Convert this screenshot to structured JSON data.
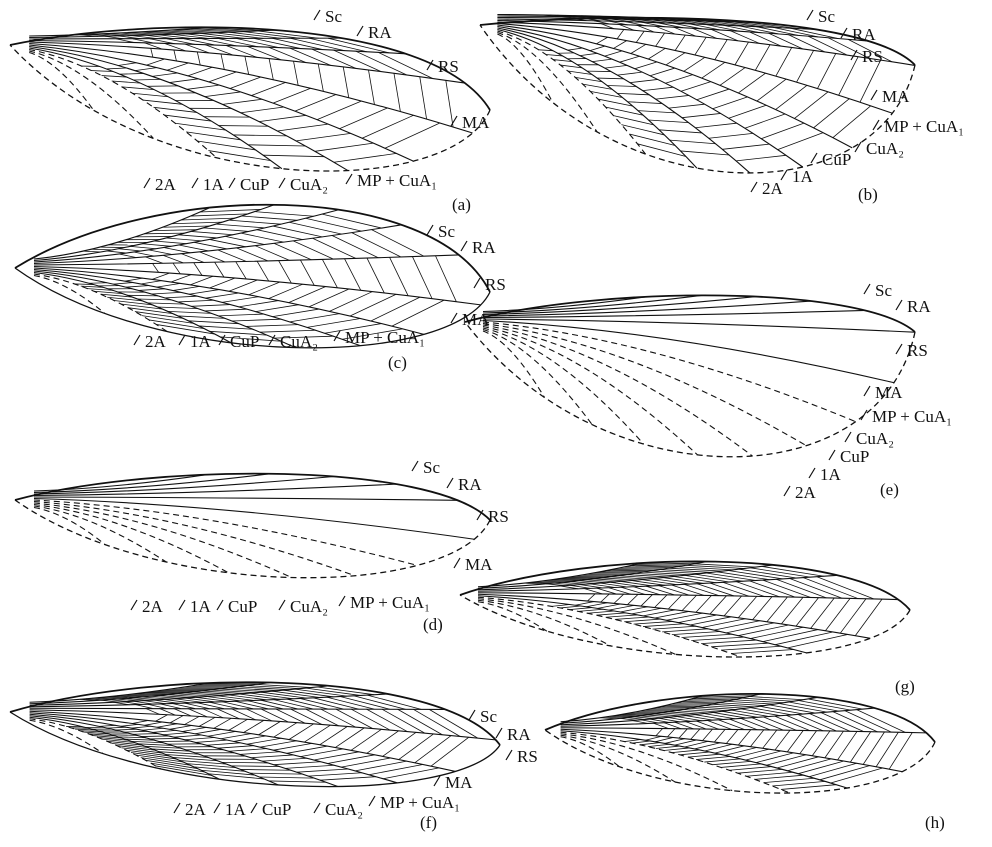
{
  "figure": {
    "panels": [
      {
        "label": "(a)",
        "veins": [
          "Sc",
          "RA",
          "RS",
          "MA",
          "MP + CuA₁",
          "CuA₂",
          "CuP",
          "1A",
          "2A"
        ]
      },
      {
        "label": "(b)",
        "veins": [
          "Sc",
          "RA",
          "RS",
          "MA",
          "MP + CuA₁",
          "CuA₂",
          "CuP",
          "1A",
          "2A"
        ]
      },
      {
        "label": "(c)",
        "veins": [
          "Sc",
          "RA",
          "RS",
          "MA",
          "MP + CuA₁",
          "CuA₂",
          "CuP",
          "1A",
          "2A"
        ]
      },
      {
        "label": "(d)",
        "veins": [
          "Sc",
          "RA",
          "RS",
          "MA",
          "MP + CuA₁",
          "CuA₂",
          "CuP",
          "1A",
          "2A"
        ]
      },
      {
        "label": "(e)",
        "veins": [
          "Sc",
          "RA",
          "RS",
          "MA",
          "MP + CuA₁",
          "CuA₂",
          "CuP",
          "1A",
          "2A"
        ]
      },
      {
        "label": "(f)",
        "veins": [
          "Sc",
          "RA",
          "RS",
          "MA",
          "MP + CuA₁",
          "CuA₂",
          "CuP",
          "1A",
          "2A"
        ]
      },
      {
        "label": "(g)",
        "veins": []
      },
      {
        "label": "(h)",
        "veins": []
      }
    ]
  }
}
